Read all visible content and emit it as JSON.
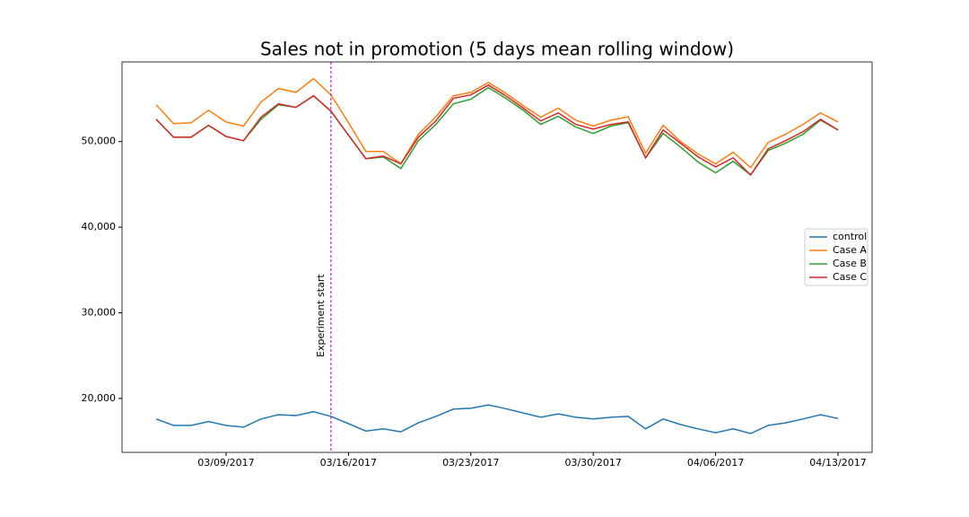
{
  "chart_data": {
    "type": "line",
    "title": "Sales not in promotion (5 days mean rolling window)",
    "x": [
      "03/05/2017",
      "03/06/2017",
      "03/07/2017",
      "03/08/2017",
      "03/09/2017",
      "03/10/2017",
      "03/11/2017",
      "03/12/2017",
      "03/13/2017",
      "03/14/2017",
      "03/15/2017",
      "03/16/2017",
      "03/17/2017",
      "03/18/2017",
      "03/19/2017",
      "03/20/2017",
      "03/21/2017",
      "03/22/2017",
      "03/23/2017",
      "03/24/2017",
      "03/25/2017",
      "03/26/2017",
      "03/27/2017",
      "03/28/2017",
      "03/29/2017",
      "03/30/2017",
      "03/31/2017",
      "04/01/2017",
      "04/02/2017",
      "04/03/2017",
      "04/04/2017",
      "04/05/2017",
      "04/06/2017",
      "04/07/2017",
      "04/08/2017",
      "04/09/2017",
      "04/10/2017",
      "04/11/2017",
      "04/12/2017",
      "04/13/2017"
    ],
    "series": [
      {
        "name": "control",
        "color": "#1f77b4",
        "values": [
          17600,
          16850,
          16850,
          17300,
          16850,
          16650,
          17600,
          18100,
          18000,
          18450,
          17900,
          17050,
          16200,
          16450,
          16100,
          17150,
          17900,
          18750,
          18850,
          19250,
          18800,
          18300,
          17800,
          18200,
          17800,
          17600,
          17800,
          17900,
          16450,
          17600,
          16950,
          16450,
          16000,
          16450,
          15900,
          16850,
          17150,
          17600,
          18100,
          17650
        ]
      },
      {
        "name": "Case A",
        "color": "#ff7f0e",
        "values": [
          54300,
          52100,
          52200,
          53650,
          52300,
          51800,
          54600,
          56200,
          55750,
          57350,
          55450,
          52200,
          48850,
          48850,
          47400,
          50850,
          52900,
          55350,
          55750,
          56900,
          55650,
          54200,
          52850,
          53900,
          52500,
          51800,
          52500,
          52900,
          48650,
          51900,
          50000,
          48550,
          47400,
          48750,
          46950,
          49900,
          50850,
          52000,
          53350,
          52300
        ]
      },
      {
        "name": "Case B",
        "color": "#2ca02c",
        "values": [
          52600,
          50500,
          50500,
          51900,
          50600,
          50100,
          52600,
          54300,
          54000,
          55350,
          53550,
          50750,
          48000,
          48200,
          46850,
          50100,
          52000,
          54400,
          54950,
          56300,
          55050,
          53650,
          52000,
          52950,
          51700,
          50950,
          51800,
          52200,
          48100,
          50950,
          49350,
          47600,
          46350,
          47700,
          46100,
          48950,
          49800,
          50850,
          52500,
          51350
        ]
      },
      {
        "name": "Case C",
        "color": "#d62728",
        "values": [
          52600,
          50500,
          50500,
          51900,
          50600,
          50100,
          52850,
          54400,
          54000,
          55350,
          53550,
          50750,
          48000,
          48300,
          47400,
          50500,
          52400,
          55050,
          55450,
          56600,
          55350,
          53900,
          52400,
          53350,
          52000,
          51450,
          52000,
          52300,
          48100,
          51350,
          49800,
          48200,
          47050,
          48100,
          46100,
          49150,
          50100,
          51150,
          52600,
          51350
        ]
      }
    ],
    "ylim": [
      13700,
      59300
    ],
    "yticks": [
      {
        "value": 20000,
        "label": "20,000"
      },
      {
        "value": 30000,
        "label": "30,000"
      },
      {
        "value": 40000,
        "label": "40,000"
      },
      {
        "value": 50000,
        "label": "50,000"
      }
    ],
    "xticks": [
      "03/09/2017",
      "03/16/2017",
      "03/23/2017",
      "03/30/2017",
      "04/06/2017",
      "04/13/2017"
    ],
    "annotation": {
      "x": "03/15/2017",
      "text": "Experiment start",
      "color": "#bf00bf"
    },
    "legend": "center right",
    "grid": false
  }
}
